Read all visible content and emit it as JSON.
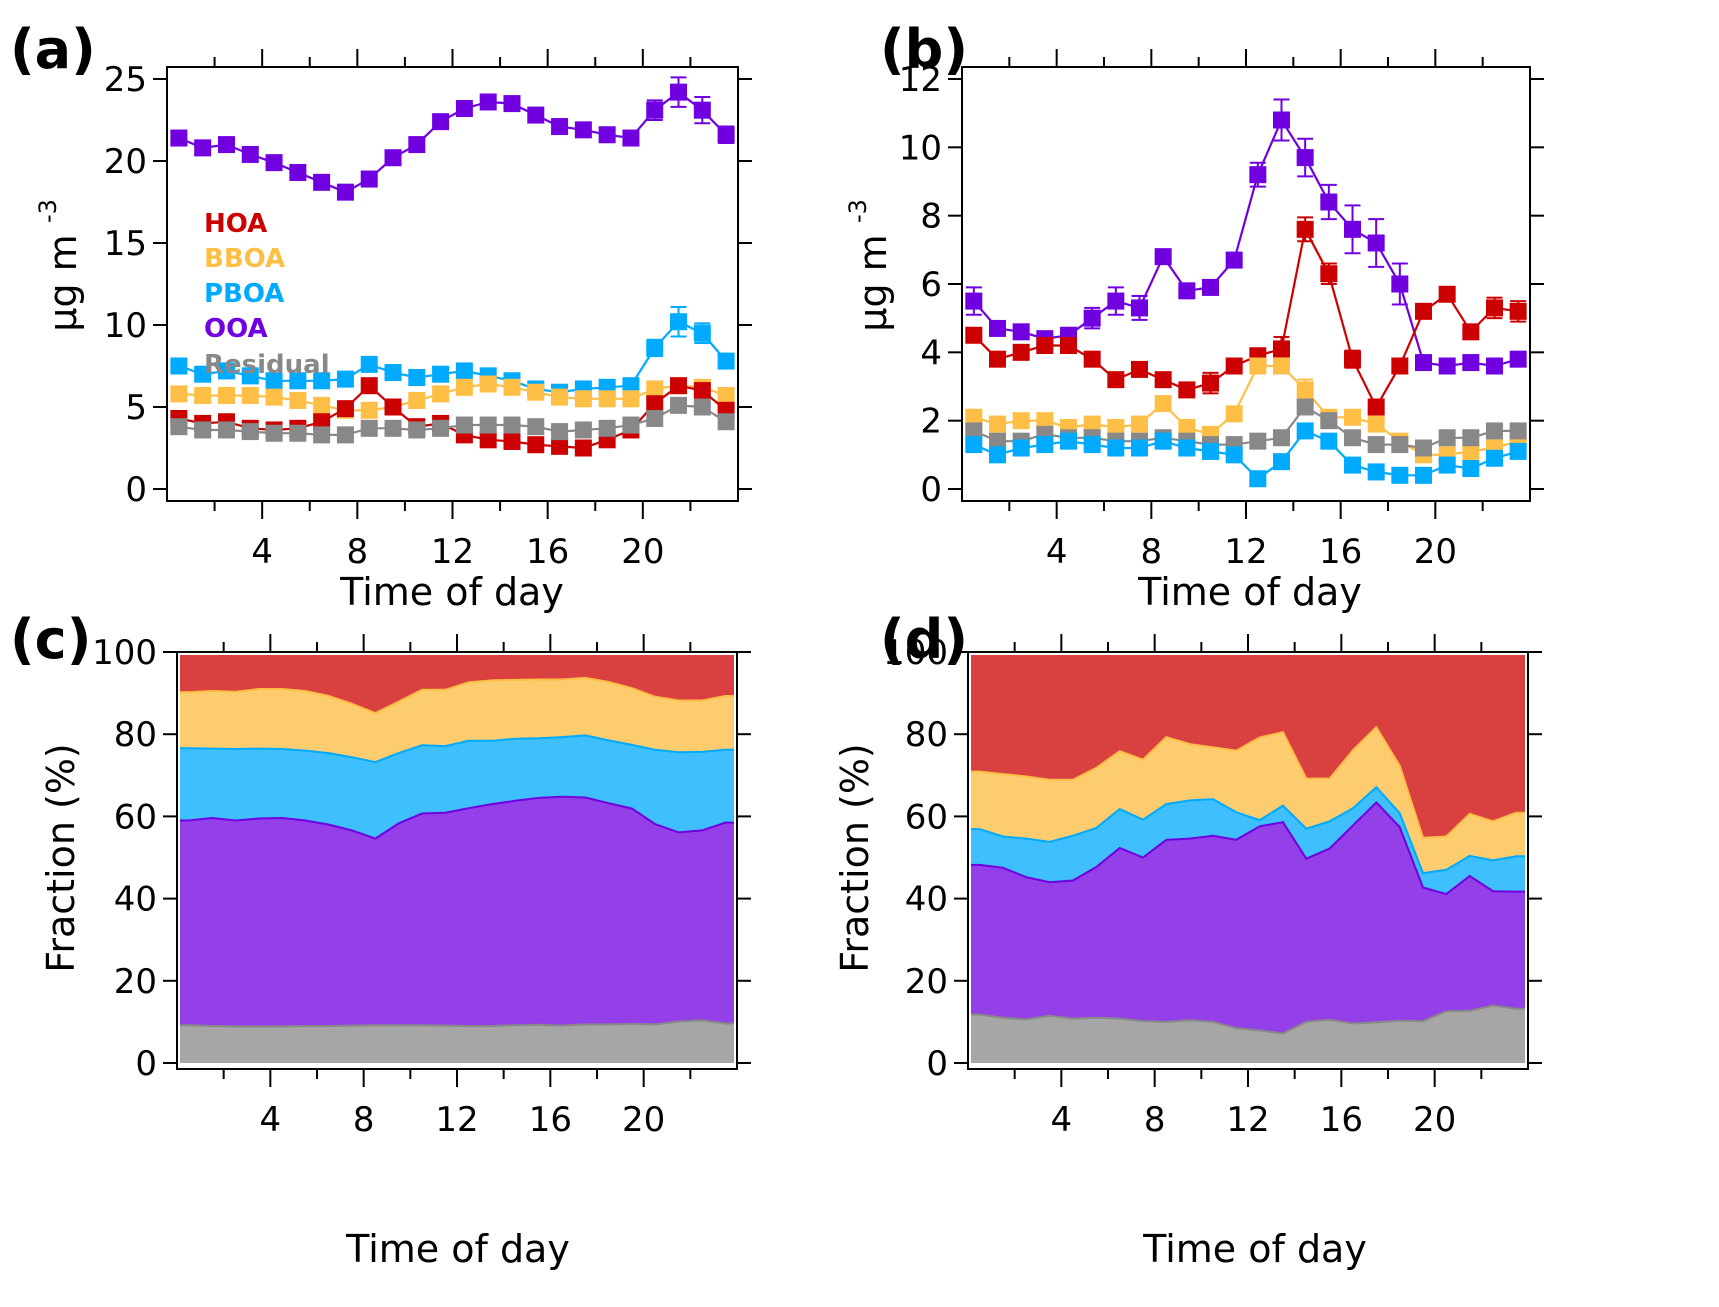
{
  "figure": {
    "xlabel": "Time of day",
    "ylabel_conc": "μg m",
    "ylabel_conc_exp": "-3",
    "ylabel_frac": "Fraction (%)"
  },
  "legend": [
    {
      "name": "HOA",
      "color": "#cc0000"
    },
    {
      "name": "BBOA",
      "color": "#ffbf47"
    },
    {
      "name": "PBOA",
      "color": "#00aaff"
    },
    {
      "name": "OOA",
      "color": "#7000e0"
    },
    {
      "name": "Residual",
      "color": "#888888"
    }
  ],
  "area_colors": {
    "HOA": "#d94040",
    "BBOA": "#fdcc6e",
    "PBOA": "#40bfff",
    "OOA": "#9440e8",
    "Residual": "#a6a6a6"
  },
  "chart_data": [
    {
      "panel": "(a)",
      "type": "line",
      "xlabel": "Time of day",
      "ylabel": "μg m-3",
      "xlim": [
        0,
        24
      ],
      "ylim": [
        0,
        25
      ],
      "xticks": [
        4,
        8,
        12,
        16,
        20
      ],
      "minor_xticks": [
        2,
        6,
        10,
        14,
        18,
        22
      ],
      "yticks": [
        0,
        5,
        10,
        15,
        20,
        25
      ],
      "x": [
        0.5,
        1.5,
        2.5,
        3.5,
        4.5,
        5.5,
        6.5,
        7.5,
        8.5,
        9.5,
        10.5,
        11.5,
        12.5,
        13.5,
        14.5,
        15.5,
        16.5,
        17.5,
        18.5,
        19.5,
        20.5,
        21.5,
        22.5,
        23.5
      ],
      "legend_position": "middle-left",
      "series": [
        {
          "name": "OOA",
          "values": [
            21.4,
            20.8,
            21.0,
            20.4,
            19.9,
            19.3,
            18.7,
            18.1,
            18.9,
            20.2,
            21.0,
            22.4,
            23.2,
            23.6,
            23.5,
            22.8,
            22.1,
            21.9,
            21.6,
            21.4,
            23.1,
            24.2,
            23.1,
            21.6
          ],
          "errors": [
            0.3,
            0.2,
            0.2,
            0.2,
            0.2,
            0.2,
            0.2,
            0.2,
            0.2,
            0.2,
            0.2,
            0.2,
            0.3,
            0.3,
            0.3,
            0.2,
            0.2,
            0.2,
            0.2,
            0.2,
            0.6,
            0.9,
            0.8,
            0.5
          ]
        },
        {
          "name": "PBOA",
          "values": [
            7.5,
            7.0,
            7.2,
            6.9,
            6.6,
            6.6,
            6.6,
            6.7,
            7.6,
            7.1,
            6.8,
            7.0,
            7.2,
            6.9,
            6.6,
            6.1,
            5.9,
            6.1,
            6.2,
            6.3,
            8.6,
            10.2,
            9.5,
            7.8
          ],
          "errors": [
            0.1,
            0.1,
            0.1,
            0.1,
            0.1,
            0.1,
            0.1,
            0.1,
            0.1,
            0.1,
            0.1,
            0.1,
            0.1,
            0.1,
            0.1,
            0.1,
            0.1,
            0.1,
            0.1,
            0.1,
            0.5,
            0.9,
            0.6,
            0.2
          ]
        },
        {
          "name": "BBOA",
          "values": [
            5.8,
            5.7,
            5.7,
            5.7,
            5.6,
            5.4,
            5.1,
            4.8,
            4.8,
            5.0,
            5.4,
            5.8,
            6.2,
            6.4,
            6.2,
            5.9,
            5.6,
            5.5,
            5.5,
            5.5,
            6.1,
            6.3,
            6.2,
            5.7
          ],
          "errors": [
            0.1,
            0.1,
            0.1,
            0.1,
            0.1,
            0.1,
            0.1,
            0.1,
            0.1,
            0.1,
            0.1,
            0.1,
            0.1,
            0.1,
            0.1,
            0.1,
            0.1,
            0.1,
            0.1,
            0.1,
            0.1,
            0.2,
            0.2,
            0.1
          ]
        },
        {
          "name": "HOA",
          "values": [
            4.3,
            4.0,
            4.1,
            3.7,
            3.6,
            3.7,
            4.1,
            4.9,
            6.3,
            5.0,
            3.8,
            4.0,
            3.3,
            3.0,
            2.9,
            2.7,
            2.6,
            2.5,
            3.0,
            3.6,
            5.2,
            6.3,
            6.0,
            4.8
          ],
          "errors": [
            0.1,
            0.1,
            0.1,
            0.1,
            0.1,
            0.1,
            0.1,
            0.1,
            0.2,
            0.1,
            0.1,
            0.1,
            0.1,
            0.1,
            0.1,
            0.1,
            0.1,
            0.1,
            0.1,
            0.1,
            0.2,
            0.3,
            0.2,
            0.2
          ]
        },
        {
          "name": "Residual",
          "values": [
            3.8,
            3.6,
            3.6,
            3.5,
            3.4,
            3.4,
            3.3,
            3.3,
            3.7,
            3.7,
            3.6,
            3.7,
            3.9,
            3.9,
            3.9,
            3.8,
            3.5,
            3.6,
            3.7,
            3.9,
            4.3,
            5.1,
            5.0,
            4.1
          ],
          "errors": [
            0.1,
            0.1,
            0.1,
            0.1,
            0.1,
            0.1,
            0.1,
            0.1,
            0.1,
            0.1,
            0.1,
            0.1,
            0.1,
            0.1,
            0.1,
            0.1,
            0.1,
            0.1,
            0.1,
            0.1,
            0.1,
            0.2,
            0.2,
            0.1
          ]
        }
      ]
    },
    {
      "panel": "(b)",
      "type": "line",
      "xlabel": "Time of day",
      "ylabel": "μg m-3",
      "xlim": [
        0,
        24
      ],
      "ylim": [
        0,
        12
      ],
      "xticks": [
        4,
        8,
        12,
        16,
        20
      ],
      "minor_xticks": [
        2,
        6,
        10,
        14,
        18,
        22
      ],
      "yticks": [
        0,
        2,
        4,
        6,
        8,
        10,
        12
      ],
      "x": [
        0.5,
        1.5,
        2.5,
        3.5,
        4.5,
        5.5,
        6.5,
        7.5,
        8.5,
        9.5,
        10.5,
        11.5,
        12.5,
        13.5,
        14.5,
        15.5,
        16.5,
        17.5,
        18.5,
        19.5,
        20.5,
        21.5,
        22.5,
        23.5
      ],
      "series": [
        {
          "name": "OOA",
          "values": [
            5.5,
            4.7,
            4.6,
            4.4,
            4.5,
            5.0,
            5.5,
            5.3,
            6.8,
            5.8,
            5.9,
            6.7,
            9.2,
            10.8,
            9.7,
            8.4,
            7.6,
            7.2,
            6.0,
            3.7,
            3.6,
            3.7,
            3.6,
            3.8
          ],
          "errors": [
            0.4,
            0.2,
            0.1,
            0.1,
            0.1,
            0.3,
            0.4,
            0.35,
            0.1,
            0.1,
            0.2,
            0.1,
            0.35,
            0.6,
            0.55,
            0.5,
            0.7,
            0.7,
            0.6,
            0.1,
            0.1,
            0.1,
            0.1,
            0.1
          ]
        },
        {
          "name": "HOA",
          "values": [
            4.5,
            3.8,
            4.0,
            4.2,
            4.2,
            3.8,
            3.2,
            3.5,
            3.2,
            2.9,
            3.1,
            3.6,
            3.9,
            4.1,
            7.6,
            6.3,
            3.8,
            2.4,
            3.6,
            5.2,
            5.7,
            4.6,
            5.3,
            5.2
          ],
          "errors": [
            0.1,
            0.1,
            0.2,
            0.2,
            0.2,
            0.1,
            0.1,
            0.1,
            0.1,
            0.1,
            0.3,
            0.1,
            0.1,
            0.35,
            0.35,
            0.3,
            0.25,
            0.1,
            0.1,
            0.1,
            0.1,
            0.2,
            0.3,
            0.3
          ]
        },
        {
          "name": "BBOA",
          "values": [
            2.1,
            1.9,
            2.0,
            2.0,
            1.8,
            1.9,
            1.8,
            1.9,
            2.5,
            1.8,
            1.6,
            2.2,
            3.6,
            3.6,
            2.9,
            2.1,
            2.1,
            1.9,
            1.4,
            1.0,
            1.0,
            1.1,
            1.2,
            1.4
          ],
          "errors": [
            0.1,
            0.1,
            0.1,
            0.1,
            0.1,
            0.1,
            0.1,
            0.1,
            0.1,
            0.1,
            0.1,
            0.1,
            0.1,
            0.2,
            0.3,
            0.1,
            0.2,
            0.1,
            0.1,
            0.1,
            0.1,
            0.1,
            0.1,
            0.1
          ]
        },
        {
          "name": "Residual",
          "values": [
            1.7,
            1.4,
            1.4,
            1.6,
            1.5,
            1.5,
            1.4,
            1.4,
            1.5,
            1.4,
            1.3,
            1.3,
            1.4,
            1.5,
            2.4,
            2.0,
            1.5,
            1.3,
            1.3,
            1.2,
            1.5,
            1.5,
            1.7,
            1.7
          ],
          "errors": [
            0.1,
            0.1,
            0.1,
            0.1,
            0.1,
            0.1,
            0.1,
            0.1,
            0.1,
            0.1,
            0.1,
            0.1,
            0.1,
            0.1,
            0.1,
            0.1,
            0.1,
            0.1,
            0.1,
            0.1,
            0.1,
            0.1,
            0.1,
            0.1
          ]
        },
        {
          "name": "PBOA",
          "values": [
            1.3,
            1.0,
            1.2,
            1.3,
            1.4,
            1.3,
            1.2,
            1.2,
            1.4,
            1.2,
            1.1,
            1.0,
            0.3,
            0.8,
            1.7,
            1.4,
            0.7,
            0.5,
            0.4,
            0.4,
            0.7,
            0.6,
            0.9,
            1.1
          ],
          "errors": [
            0.1,
            0.1,
            0.1,
            0.1,
            0.1,
            0.1,
            0.1,
            0.1,
            0.1,
            0.1,
            0.1,
            0.1,
            0.1,
            0.1,
            0.1,
            0.1,
            0.1,
            0.1,
            0.1,
            0.1,
            0.1,
            0.1,
            0.1,
            0.1
          ]
        }
      ]
    },
    {
      "panel": "(c)",
      "type": "area",
      "stacked": true,
      "xlabel": "Time of day",
      "ylabel": "Fraction (%)",
      "xlim": [
        0,
        24
      ],
      "ylim": [
        0,
        100
      ],
      "xticks": [
        4,
        8,
        12,
        16,
        20
      ],
      "minor_xticks": [
        2,
        6,
        10,
        14,
        18,
        22
      ],
      "yticks": [
        0,
        20,
        40,
        60,
        80,
        100
      ],
      "x": [
        0.5,
        1.5,
        2.5,
        3.5,
        4.5,
        5.5,
        6.5,
        7.5,
        8.5,
        9.5,
        10.5,
        11.5,
        12.5,
        13.5,
        14.5,
        15.5,
        16.5,
        17.5,
        18.5,
        19.5,
        20.5,
        21.5,
        22.5,
        23.5
      ],
      "stack_order": [
        "Residual",
        "OOA",
        "PBOA",
        "BBOA",
        "HOA"
      ],
      "cumulative_tops": {
        "Residual": [
          9.2,
          9.0,
          8.9,
          8.9,
          8.9,
          9.0,
          9.0,
          9.1,
          9.2,
          9.2,
          9.2,
          9.1,
          9.0,
          9.0,
          9.2,
          9.3,
          9.1,
          9.4,
          9.4,
          9.5,
          9.4,
          10.1,
          10.4,
          9.6
        ],
        "OOA": [
          59.0,
          59.6,
          59.0,
          59.5,
          59.6,
          59.0,
          58.0,
          56.6,
          54.6,
          58.3,
          60.7,
          60.9,
          62.0,
          63.0,
          63.8,
          64.5,
          64.8,
          64.6,
          63.2,
          61.9,
          58.1,
          56.1,
          56.6,
          58.5
        ],
        "PBOA": [
          76.6,
          76.5,
          76.4,
          76.5,
          76.4,
          76.0,
          75.4,
          74.4,
          73.2,
          75.4,
          77.3,
          77.1,
          78.4,
          78.4,
          78.9,
          79.0,
          79.3,
          79.7,
          78.5,
          77.4,
          76.2,
          75.6,
          75.7,
          76.2
        ],
        "BBOA": [
          90.2,
          90.5,
          90.3,
          91.0,
          91.0,
          90.5,
          89.3,
          87.4,
          85.1,
          87.9,
          90.8,
          90.8,
          92.6,
          93.1,
          93.2,
          93.3,
          93.3,
          93.7,
          92.7,
          91.2,
          89.1,
          88.2,
          88.2,
          89.3
        ],
        "HOA": [
          100,
          100,
          100,
          100,
          100,
          100,
          100,
          100,
          100,
          100,
          100,
          100,
          100,
          100,
          100,
          100,
          100,
          100,
          100,
          100,
          100,
          100,
          100,
          100
        ]
      }
    },
    {
      "panel": "(d)",
      "type": "area",
      "stacked": true,
      "xlabel": "Time of day",
      "ylabel": "Fraction (%)",
      "xlim": [
        0,
        24
      ],
      "ylim": [
        0,
        100
      ],
      "xticks": [
        4,
        8,
        12,
        16,
        20
      ],
      "minor_xticks": [
        2,
        6,
        10,
        14,
        18,
        22
      ],
      "yticks": [
        0,
        20,
        40,
        60,
        80,
        100
      ],
      "x": [
        0.5,
        1.5,
        2.5,
        3.5,
        4.5,
        5.5,
        6.5,
        7.5,
        8.5,
        9.5,
        10.5,
        11.5,
        12.5,
        13.5,
        14.5,
        15.5,
        16.5,
        17.5,
        18.5,
        19.5,
        20.5,
        21.5,
        22.5,
        23.5
      ],
      "stack_order": [
        "Residual",
        "OOA",
        "PBOA",
        "BBOA",
        "HOA"
      ],
      "cumulative_tops": {
        "Residual": [
          11.8,
          11.0,
          10.6,
          11.5,
          10.8,
          11.0,
          10.8,
          10.2,
          10.0,
          10.4,
          10.0,
          8.5,
          7.9,
          7.2,
          10.0,
          10.5,
          9.6,
          9.9,
          10.3,
          10.2,
          12.6,
          12.7,
          14.0,
          13.2
        ],
        "OOA": [
          48.2,
          47.5,
          45.2,
          44.0,
          44.4,
          47.7,
          52.3,
          50.0,
          54.3,
          54.6,
          55.3,
          54.3,
          57.6,
          58.6,
          49.7,
          52.2,
          57.8,
          63.4,
          57.4,
          42.7,
          41.1,
          45.5,
          41.8,
          41.7
        ],
        "PBOA": [
          56.9,
          55.1,
          54.6,
          53.8,
          55.3,
          57.2,
          61.8,
          59.2,
          63.0,
          63.9,
          64.2,
          61.0,
          59.1,
          62.6,
          57.0,
          58.8,
          62.0,
          67.1,
          60.8,
          46.2,
          47.0,
          50.4,
          49.3,
          50.3
        ],
        "BBOA": [
          70.9,
          70.3,
          69.7,
          68.9,
          68.9,
          71.8,
          75.9,
          73.8,
          79.3,
          77.6,
          76.8,
          76.0,
          79.2,
          80.5,
          69.2,
          69.2,
          76.1,
          81.7,
          72.3,
          54.8,
          55.1,
          60.6,
          58.8,
          60.9
        ],
        "HOA": [
          100,
          100,
          100,
          100,
          100,
          100,
          100,
          100,
          100,
          100,
          100,
          100,
          100,
          100,
          100,
          100,
          100,
          100,
          100,
          100,
          100,
          100,
          100,
          100
        ]
      }
    }
  ]
}
